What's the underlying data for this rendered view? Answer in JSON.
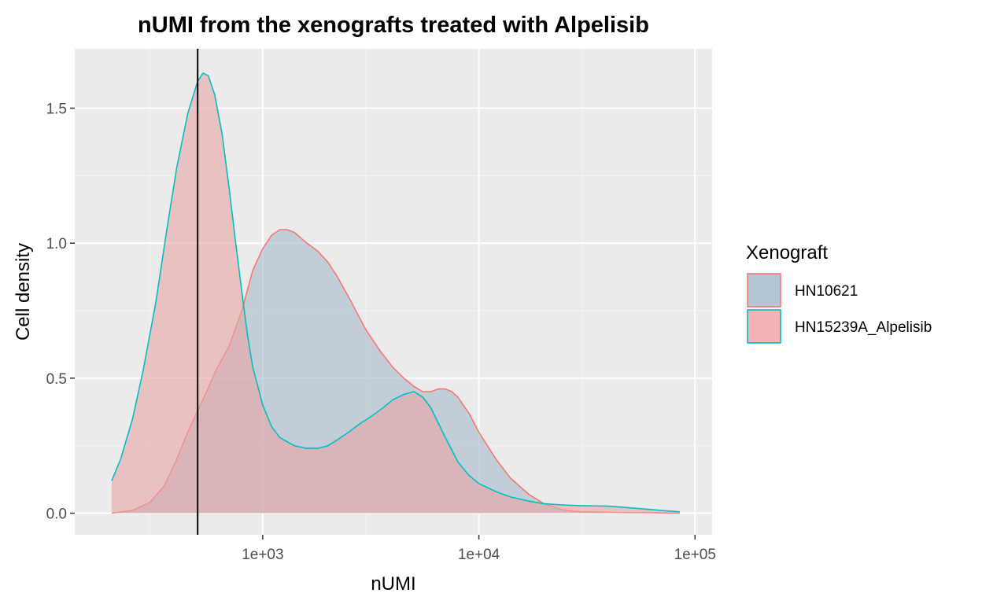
{
  "chart_data": {
    "type": "area",
    "title": "nUMI from the xenografts treated with Alpelisib",
    "xlabel": "nUMI",
    "ylabel": "Cell density",
    "x_scale": "log10",
    "xlim": [
      135,
      120000
    ],
    "ylim": [
      -0.08,
      1.72
    ],
    "x_ticks": [
      {
        "value": 1000,
        "label": "1e+03"
      },
      {
        "value": 10000,
        "label": "1e+04"
      },
      {
        "value": 100000,
        "label": "1e+05"
      }
    ],
    "y_ticks": [
      {
        "value": 0.0,
        "label": "0.0"
      },
      {
        "value": 0.5,
        "label": "0.5"
      },
      {
        "value": 1.0,
        "label": "1.0"
      },
      {
        "value": 1.5,
        "label": "1.5"
      }
    ],
    "grid": true,
    "vline": {
      "x": 500
    },
    "legend": {
      "title": "Xenograft",
      "position": "right",
      "entries": [
        {
          "label": "HN10621",
          "fill": "#b3c6d6",
          "stroke": "#f8766d"
        },
        {
          "label": "HN15239A_Alpelisib",
          "fill": "#f2b4b4",
          "stroke": "#00bfc4"
        }
      ]
    },
    "series": [
      {
        "name": "HN10621",
        "fill": "#a7b9cc",
        "stroke": "#f8766d",
        "x": [
          200,
          250,
          300,
          350,
          400,
          450,
          500,
          550,
          600,
          700,
          800,
          900,
          1000,
          1100,
          1200,
          1300,
          1400,
          1600,
          1800,
          2000,
          2200,
          2500,
          3000,
          3500,
          4000,
          4500,
          5000,
          5500,
          6000,
          6500,
          7000,
          7500,
          8000,
          9000,
          10000,
          12000,
          14000,
          17000,
          20000,
          25000,
          30000,
          40000,
          50000,
          60000,
          70000,
          85000
        ],
        "y": [
          0.0,
          0.01,
          0.04,
          0.1,
          0.2,
          0.3,
          0.38,
          0.45,
          0.52,
          0.62,
          0.75,
          0.9,
          0.98,
          1.03,
          1.05,
          1.05,
          1.04,
          1.0,
          0.97,
          0.93,
          0.88,
          0.8,
          0.68,
          0.6,
          0.54,
          0.5,
          0.47,
          0.45,
          0.45,
          0.46,
          0.46,
          0.45,
          0.43,
          0.37,
          0.3,
          0.2,
          0.13,
          0.07,
          0.035,
          0.01,
          0.005,
          0.003,
          0.002,
          0.002,
          0.001,
          0.0
        ]
      },
      {
        "name": "HN15239A_Alpelisib",
        "fill": "#e8a5a5",
        "stroke": "#00bfc4",
        "x": [
          200,
          220,
          250,
          280,
          320,
          360,
          400,
          450,
          500,
          530,
          560,
          600,
          650,
          700,
          750,
          800,
          850,
          900,
          1000,
          1100,
          1200,
          1400,
          1600,
          1800,
          2000,
          2200,
          2500,
          2800,
          3200,
          3600,
          4000,
          4500,
          5000,
          5500,
          6000,
          7000,
          8000,
          9000,
          10000,
          12000,
          14000,
          17000,
          20000,
          25000,
          30000,
          40000,
          50000,
          60000,
          70000,
          85000
        ],
        "y": [
          0.12,
          0.2,
          0.35,
          0.53,
          0.78,
          1.05,
          1.28,
          1.48,
          1.6,
          1.63,
          1.62,
          1.55,
          1.4,
          1.2,
          1.0,
          0.82,
          0.66,
          0.54,
          0.4,
          0.32,
          0.28,
          0.25,
          0.24,
          0.24,
          0.25,
          0.27,
          0.3,
          0.33,
          0.36,
          0.39,
          0.42,
          0.44,
          0.45,
          0.43,
          0.39,
          0.28,
          0.19,
          0.14,
          0.11,
          0.08,
          0.06,
          0.045,
          0.035,
          0.03,
          0.028,
          0.026,
          0.02,
          0.015,
          0.01,
          0.005
        ]
      }
    ]
  }
}
